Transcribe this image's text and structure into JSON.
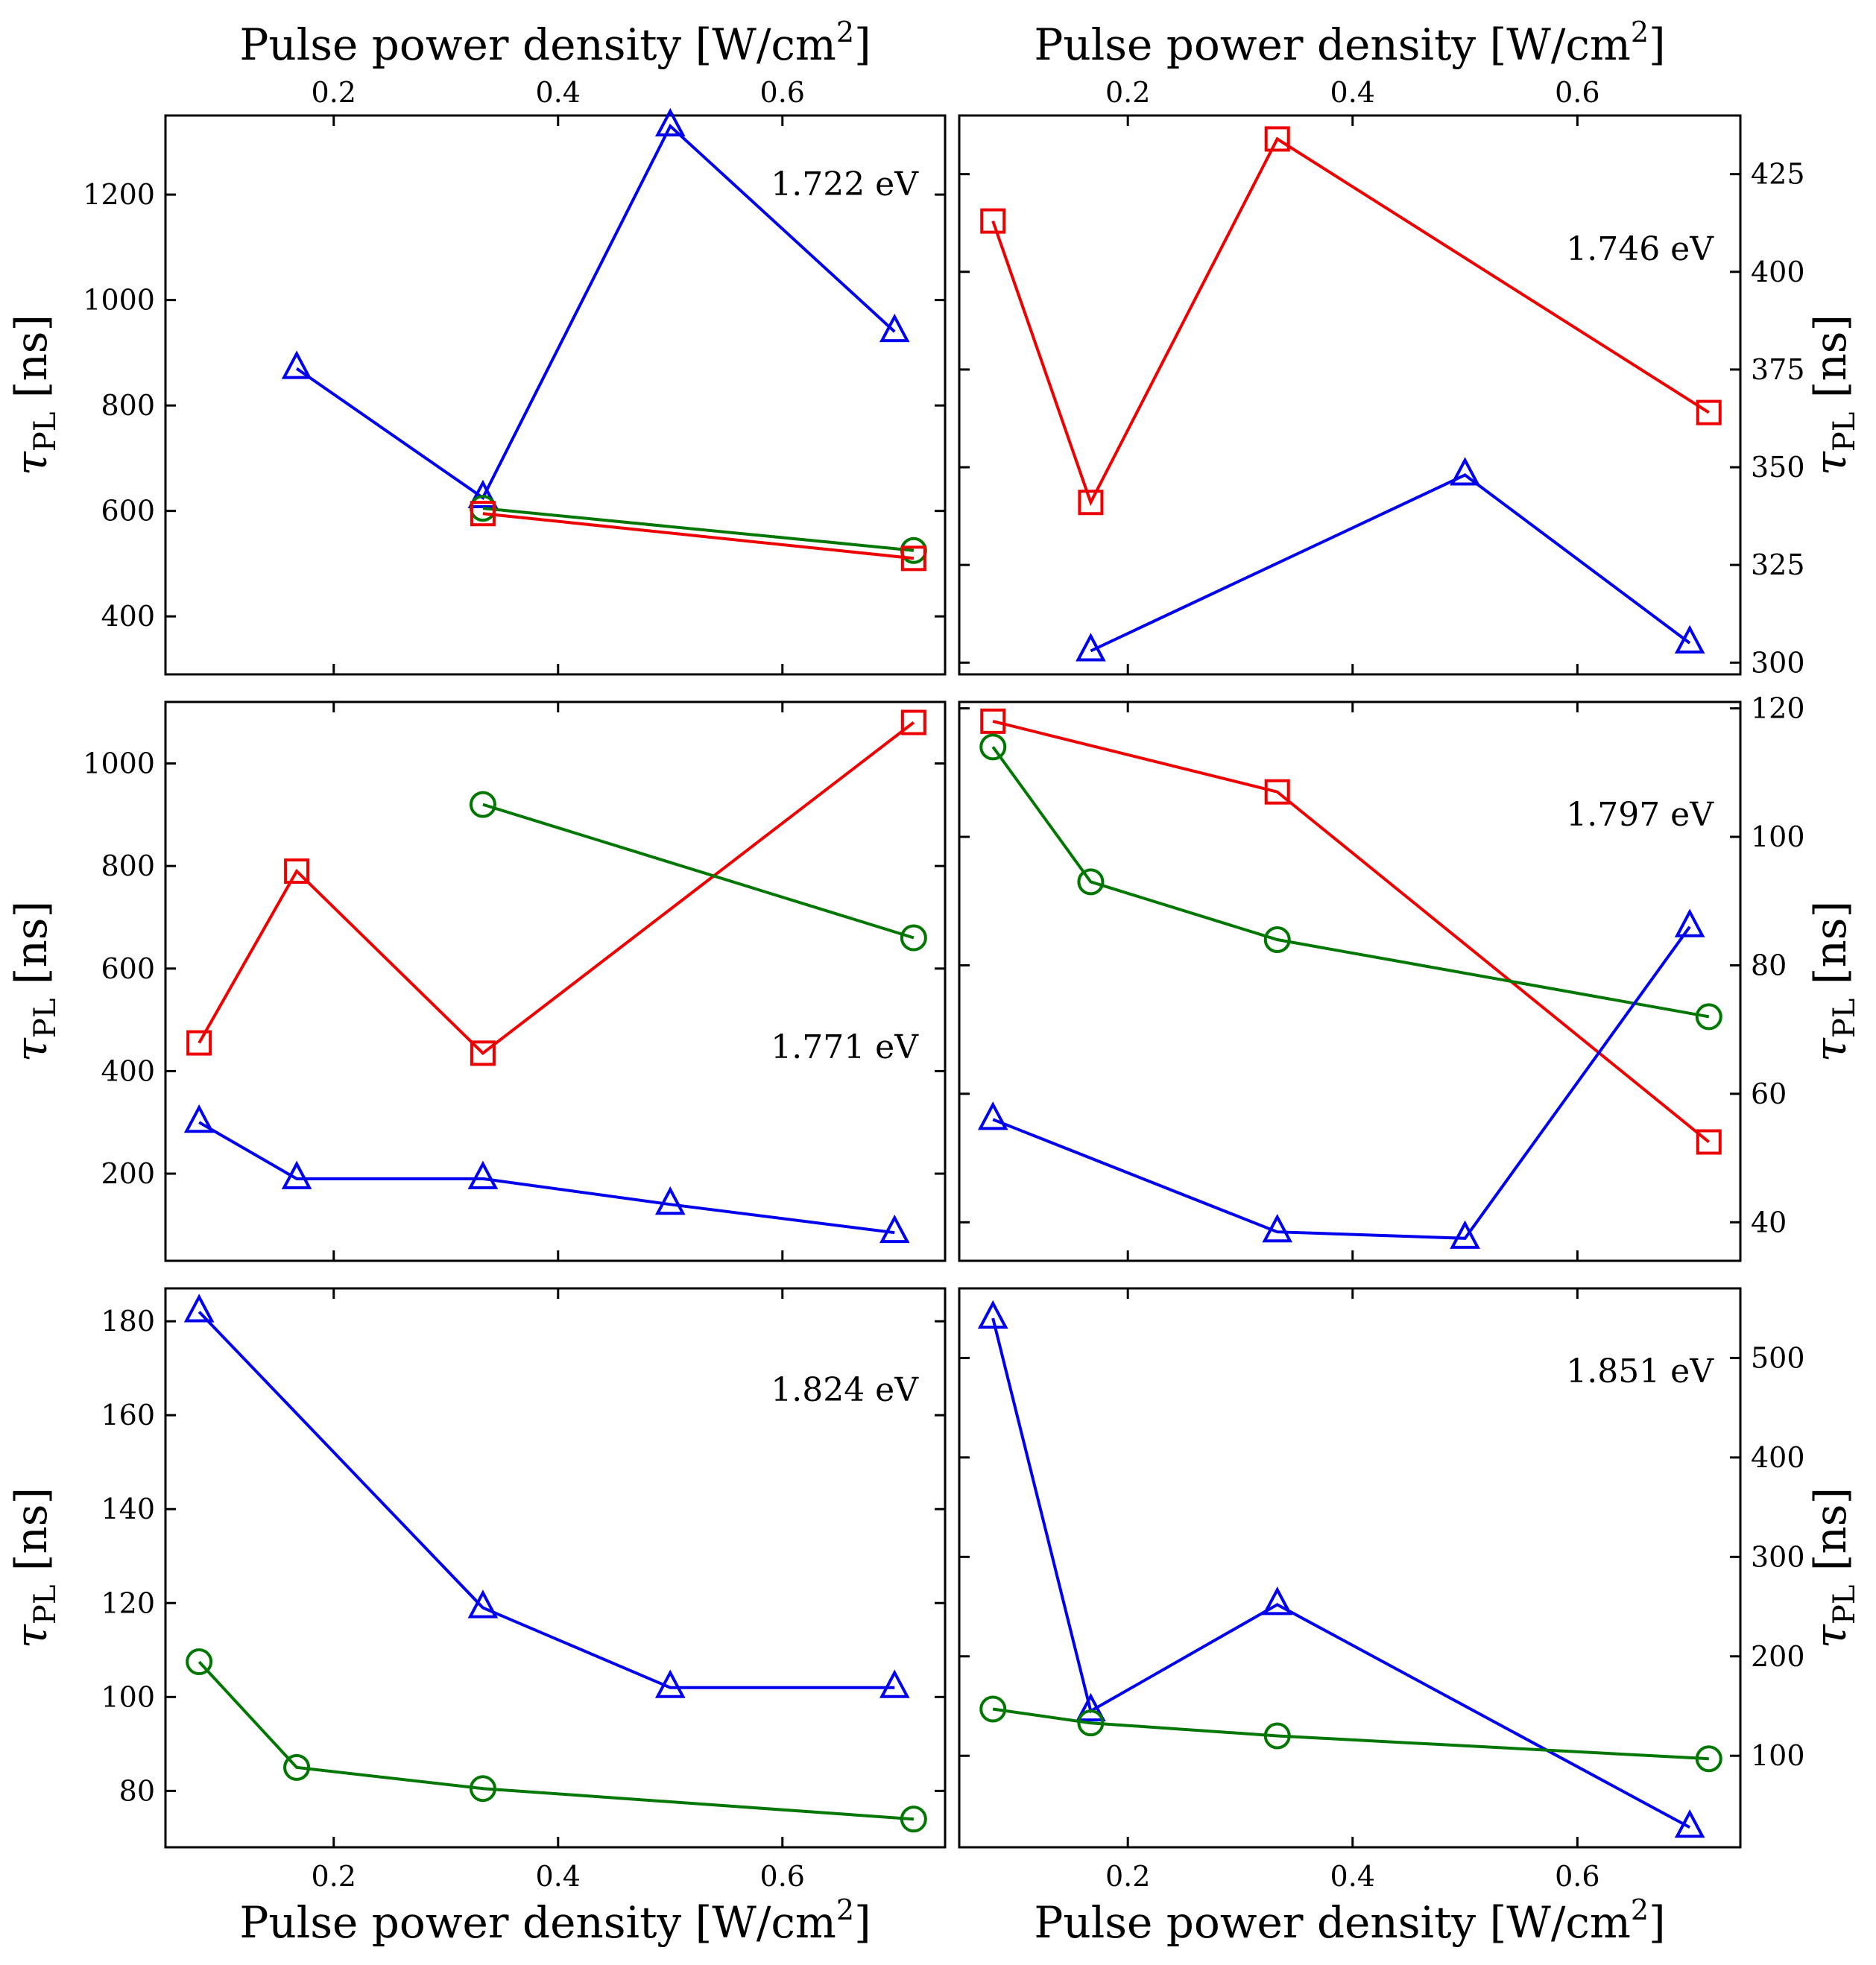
{
  "figure": {
    "top_axis_label": "Pulse power density [W/cm",
    "bottom_axis_label": "Pulse power density [W/cm",
    "axis_label_superscript": "2",
    "axis_label_close": "]",
    "y_axis_label_symbol": "τ",
    "y_axis_label_subscript": "PL",
    "y_axis_label_unit": "[ns]"
  },
  "colors": {
    "blue": "#0000ee",
    "red": "#ee0000",
    "green": "#007700"
  },
  "chart_data": [
    {
      "type": "line",
      "annotation": "1.722 eV",
      "xlim": [
        0.05,
        0.745
      ],
      "ylim": [
        290,
        1350
      ],
      "xticks": [
        0.2,
        0.4,
        0.6
      ],
      "yticks": [
        400,
        600,
        800,
        1000,
        1200
      ],
      "yaxis_side": "left",
      "top_tick_labels": true,
      "bottom_tick_labels": false,
      "series": [
        {
          "marker": "triangle",
          "color": "#0000ee",
          "x": [
            0.167,
            0.333,
            0.5,
            0.7
          ],
          "y": [
            870,
            625,
            1330,
            940
          ]
        },
        {
          "marker": "circle",
          "color": "#007700",
          "x": [
            0.333,
            0.717
          ],
          "y": [
            605,
            525
          ]
        },
        {
          "marker": "square",
          "color": "#ee0000",
          "x": [
            0.333,
            0.717
          ],
          "y": [
            595,
            510
          ]
        }
      ]
    },
    {
      "type": "line",
      "annotation": "1.746 eV",
      "xlim": [
        0.05,
        0.745
      ],
      "ylim": [
        297,
        440
      ],
      "xticks": [
        0.2,
        0.4,
        0.6
      ],
      "yticks": [
        300,
        325,
        350,
        375,
        400,
        425
      ],
      "yaxis_side": "right",
      "top_tick_labels": true,
      "bottom_tick_labels": false,
      "series": [
        {
          "marker": "square",
          "color": "#ee0000",
          "x": [
            0.08,
            0.167,
            0.333,
            0.717
          ],
          "y": [
            413,
            341,
            434,
            364
          ]
        },
        {
          "marker": "triangle",
          "color": "#0000ee",
          "x": [
            0.167,
            0.5,
            0.7
          ],
          "y": [
            303,
            348,
            305
          ]
        }
      ]
    },
    {
      "type": "line",
      "annotation": "1.771 eV",
      "xlim": [
        0.05,
        0.745
      ],
      "ylim": [
        30,
        1120
      ],
      "xticks": [
        0.2,
        0.4,
        0.6
      ],
      "yticks": [
        200,
        400,
        600,
        800,
        1000
      ],
      "yaxis_side": "left",
      "top_tick_labels": false,
      "bottom_tick_labels": false,
      "series": [
        {
          "marker": "square",
          "color": "#ee0000",
          "x": [
            0.08,
            0.167,
            0.333,
            0.717
          ],
          "y": [
            455,
            790,
            435,
            1080
          ]
        },
        {
          "marker": "circle",
          "color": "#007700",
          "x": [
            0.333,
            0.717
          ],
          "y": [
            920,
            660
          ]
        },
        {
          "marker": "triangle",
          "color": "#0000ee",
          "x": [
            0.08,
            0.167,
            0.333,
            0.5,
            0.7
          ],
          "y": [
            300,
            190,
            190,
            140,
            85
          ]
        }
      ]
    },
    {
      "type": "line",
      "annotation": "1.797 eV",
      "xlim": [
        0.05,
        0.745
      ],
      "ylim": [
        34,
        121
      ],
      "xticks": [
        0.2,
        0.4,
        0.6
      ],
      "yticks": [
        40,
        60,
        80,
        100,
        120
      ],
      "yaxis_side": "right",
      "top_tick_labels": false,
      "bottom_tick_labels": false,
      "series": [
        {
          "marker": "square",
          "color": "#ee0000",
          "x": [
            0.08,
            0.333,
            0.717
          ],
          "y": [
            118,
            107,
            52.5
          ]
        },
        {
          "marker": "circle",
          "color": "#007700",
          "x": [
            0.08,
            0.167,
            0.333,
            0.717
          ],
          "y": [
            114,
            93,
            84,
            72
          ]
        },
        {
          "marker": "triangle",
          "color": "#0000ee",
          "x": [
            0.08,
            0.333,
            0.5,
            0.7
          ],
          "y": [
            56,
            38.5,
            37.5,
            86
          ]
        }
      ]
    },
    {
      "type": "line",
      "annotation": "1.824 eV",
      "xlim": [
        0.05,
        0.745
      ],
      "ylim": [
        68,
        187
      ],
      "xticks": [
        0.2,
        0.4,
        0.6
      ],
      "yticks": [
        80,
        100,
        120,
        140,
        160,
        180
      ],
      "yaxis_side": "left",
      "top_tick_labels": false,
      "bottom_tick_labels": true,
      "series": [
        {
          "marker": "triangle",
          "color": "#0000ee",
          "x": [
            0.08,
            0.333,
            0.5,
            0.7
          ],
          "y": [
            182,
            119,
            102,
            102
          ]
        },
        {
          "marker": "circle",
          "color": "#007700",
          "x": [
            0.08,
            0.167,
            0.333,
            0.717
          ],
          "y": [
            107.5,
            85,
            80.5,
            74
          ]
        }
      ]
    },
    {
      "type": "line",
      "annotation": "1.851 eV",
      "xlim": [
        0.05,
        0.745
      ],
      "ylim": [
        8,
        570
      ],
      "xticks": [
        0.2,
        0.4,
        0.6
      ],
      "yticks": [
        100,
        200,
        300,
        400,
        500
      ],
      "yaxis_side": "right",
      "top_tick_labels": false,
      "bottom_tick_labels": true,
      "series": [
        {
          "marker": "triangle",
          "color": "#0000ee",
          "x": [
            0.08,
            0.167,
            0.333,
            0.7
          ],
          "y": [
            540,
            145,
            252,
            28
          ]
        },
        {
          "marker": "circle",
          "color": "#007700",
          "x": [
            0.08,
            0.167,
            0.333,
            0.717
          ],
          "y": [
            147,
            133,
            120,
            97
          ]
        }
      ]
    }
  ]
}
